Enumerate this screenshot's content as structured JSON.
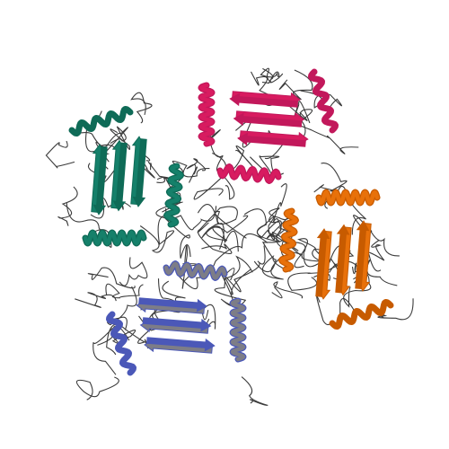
{
  "image": {
    "kind": "protein-ribbon-cartoon",
    "background": "#ffffff",
    "chain_count": 4,
    "chains": [
      {
        "id": "chain-top",
        "position_word": "top",
        "color": "#d81b60",
        "accent": "#c2185b"
      },
      {
        "id": "chain-left",
        "position_word": "left",
        "color": "#15806a",
        "accent": "#0f6b57"
      },
      {
        "id": "chain-right",
        "position_word": "right",
        "color": "#e8710a",
        "accent": "#c75b00"
      },
      {
        "id": "chain-bottom",
        "position_word": "bottom",
        "color": "#7d7d87",
        "accent": "#4b58b8"
      }
    ],
    "coil_color": "#3b3b3b"
  }
}
